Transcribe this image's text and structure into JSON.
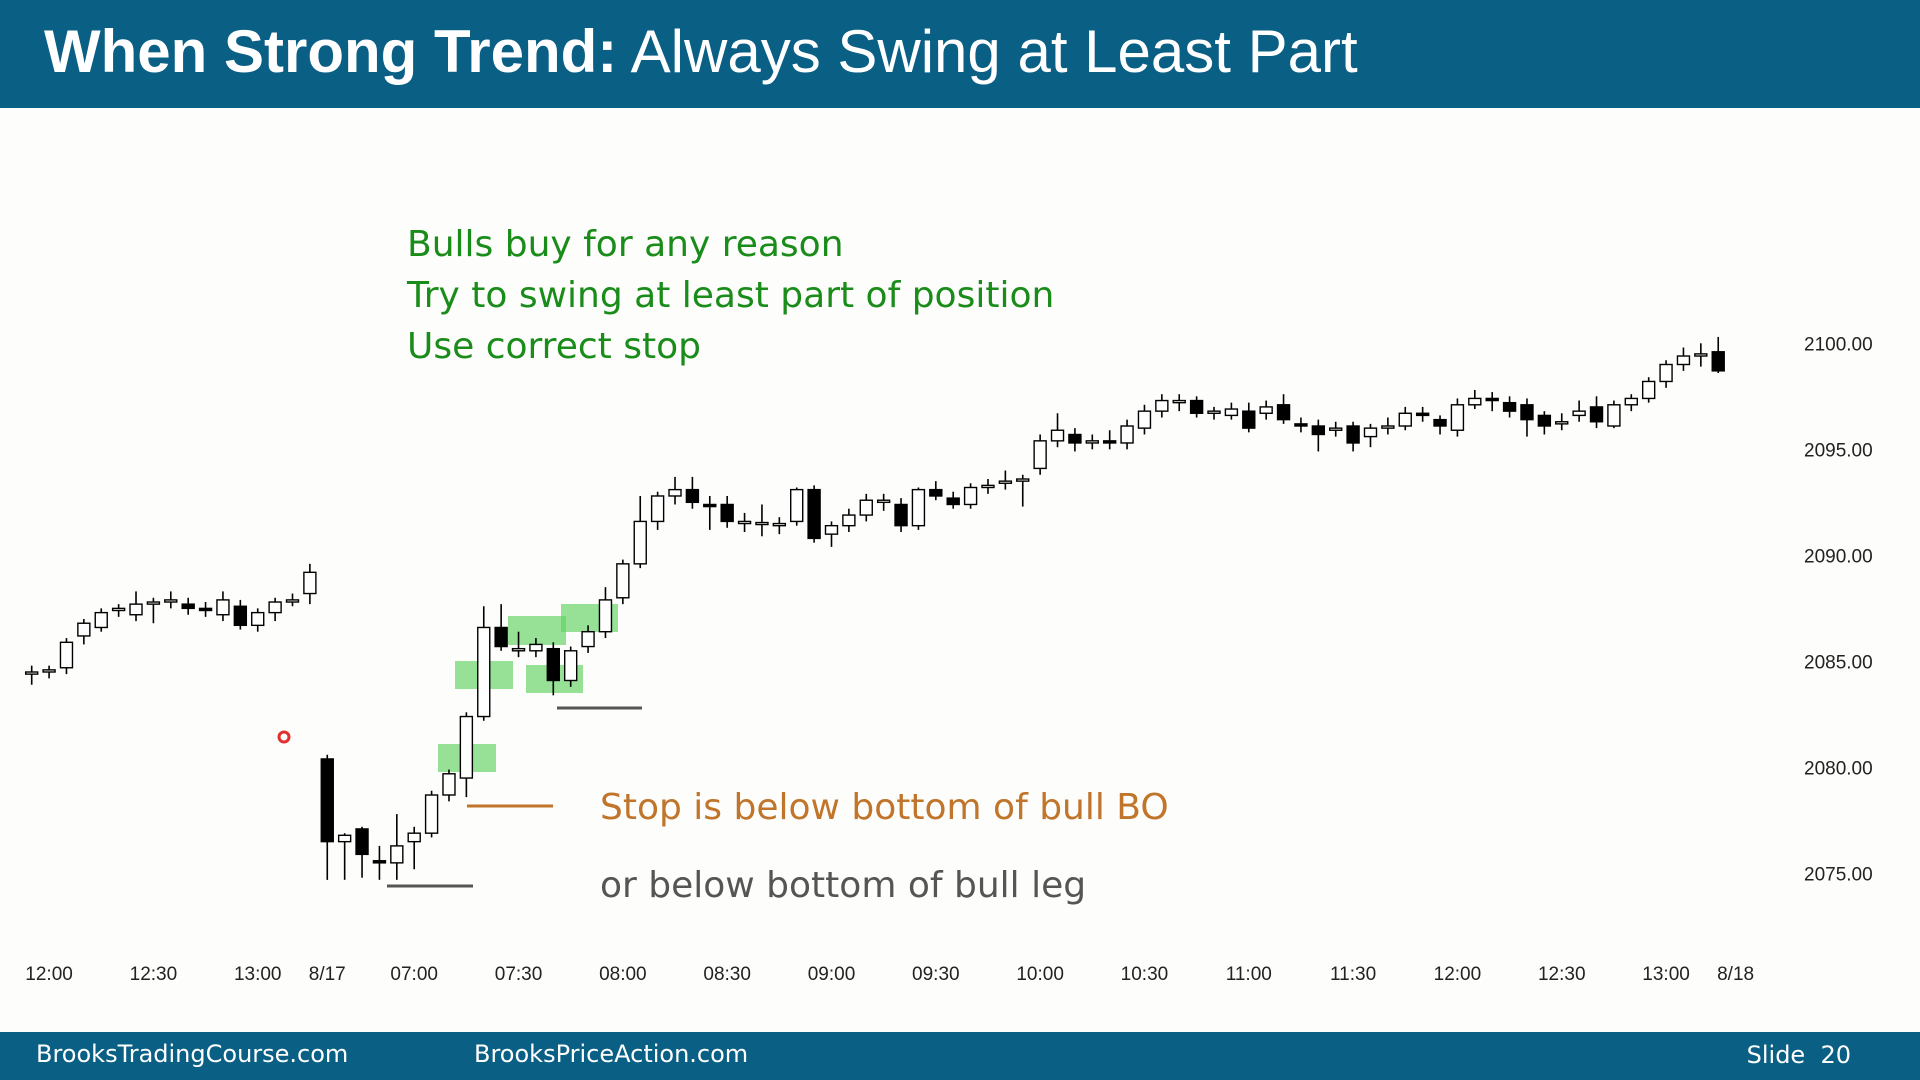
{
  "header": {
    "title_lead": "When Strong Trend:",
    "title_main": "Always Swing at Least Part"
  },
  "annotations": {
    "bull_lines": [
      "Bulls buy for any reason",
      "Try to swing at least part of position",
      "Use correct stop"
    ],
    "stop_bo": "Stop is below bottom of bull BO",
    "stop_leg": "or below bottom of bull leg"
  },
  "footer": {
    "left": "BrooksTradingCourse.com",
    "center": "BrooksPriceAction.com",
    "slide": "Slide  20"
  },
  "chart_data": {
    "type": "candlestick",
    "x": [
      -1,
      0,
      1,
      2,
      3,
      4,
      5,
      6,
      7,
      8,
      9,
      10,
      11,
      12,
      13,
      14,
      15,
      16,
      17,
      18,
      19,
      20,
      21,
      22,
      23,
      24,
      25,
      26,
      27,
      28,
      29,
      30,
      31,
      32,
      33,
      34,
      35,
      36,
      37,
      38,
      39,
      40,
      41,
      42,
      43,
      44,
      45,
      46,
      47,
      48,
      49,
      50,
      51,
      52,
      53,
      54,
      55,
      56,
      57,
      58,
      59,
      60,
      61,
      62,
      63,
      64,
      65,
      66,
      67,
      68,
      69,
      70,
      71,
      72,
      73,
      74,
      75,
      76,
      77,
      78,
      79,
      80,
      81,
      82,
      83,
      84,
      85,
      86,
      87,
      88,
      89,
      90,
      91,
      92,
      93,
      94,
      95,
      96
    ],
    "open": [
      2084.5,
      2084.6,
      2084.8,
      2086.3,
      2086.7,
      2087.5,
      2087.3,
      2087.8,
      2087.9,
      2087.8,
      2087.6,
      2087.3,
      2087.7,
      2086.8,
      2087.4,
      2087.9,
      2088.3,
      2080.5,
      2076.6,
      2077.2,
      2075.7,
      2075.6,
      2076.6,
      2077.0,
      2078.8,
      2079.6,
      2082.5,
      2086.7,
      2085.6,
      2085.6,
      2085.7,
      2084.2,
      2085.8,
      2086.5,
      2088.1,
      2089.7,
      2091.7,
      2092.9,
      2093.2,
      2092.5,
      2092.5,
      2091.6,
      2091.6,
      2091.5,
      2091.7,
      2093.2,
      2091.1,
      2091.5,
      2092.0,
      2092.6,
      2092.5,
      2091.5,
      2093.2,
      2092.8,
      2092.5,
      2093.3,
      2093.5,
      2093.6,
      2094.2,
      2095.5,
      2095.8,
      2095.4,
      2095.5,
      2095.4,
      2096.1,
      2096.9,
      2097.3,
      2097.4,
      2096.8,
      2096.7,
      2096.9,
      2096.8,
      2097.2,
      2096.3,
      2096.2,
      2096.0,
      2096.2,
      2095.7,
      2096.1,
      2096.2,
      2096.8,
      2096.5,
      2096.0,
      2097.2,
      2097.5,
      2097.3,
      2097.2,
      2096.7,
      2096.3,
      2096.7,
      2097.1,
      2096.2,
      2097.2,
      2097.5,
      2098.3,
      2099.1,
      2099.5,
      2099.7
    ],
    "high": [
      2084.9,
      2084.9,
      2086.2,
      2087.1,
      2087.6,
      2087.8,
      2088.4,
      2088.1,
      2088.4,
      2088.1,
      2087.9,
      2088.4,
      2088.0,
      2087.6,
      2088.1,
      2088.3,
      2089.7,
      2080.7,
      2077.0,
      2077.3,
      2076.4,
      2077.9,
      2077.3,
      2079.0,
      2080.0,
      2082.7,
      2087.7,
      2087.8,
      2086.5,
      2086.2,
      2086.0,
      2085.8,
      2086.8,
      2088.6,
      2089.9,
      2092.9,
      2093.1,
      2093.8,
      2093.8,
      2092.9,
      2092.9,
      2092.1,
      2092.5,
      2091.9,
      2093.3,
      2093.4,
      2091.7,
      2092.3,
      2093.0,
      2093.0,
      2092.8,
      2093.3,
      2093.6,
      2093.1,
      2093.5,
      2093.7,
      2094.1,
      2093.9,
      2095.8,
      2096.8,
      2096.1,
      2095.8,
      2096.0,
      2096.5,
      2097.2,
      2097.7,
      2097.7,
      2097.6,
      2097.1,
      2097.3,
      2097.3,
      2097.4,
      2097.7,
      2096.6,
      2096.5,
      2096.4,
      2096.4,
      2096.3,
      2096.6,
      2097.1,
      2097.1,
      2096.7,
      2097.5,
      2097.9,
      2097.8,
      2097.6,
      2097.5,
      2096.9,
      2096.8,
      2097.4,
      2097.6,
      2097.4,
      2097.7,
      2098.5,
      2099.3,
      2099.9,
      2100.1,
      2100.4
    ],
    "low": [
      2084.0,
      2084.3,
      2084.5,
      2085.9,
      2086.5,
      2087.2,
      2087.0,
      2086.9,
      2087.6,
      2087.3,
      2087.2,
      2087.0,
      2086.6,
      2086.5,
      2087.0,
      2087.7,
      2087.8,
      2074.8,
      2074.8,
      2074.9,
      2074.8,
      2074.8,
      2075.3,
      2076.8,
      2078.5,
      2078.7,
      2082.3,
      2085.6,
      2085.3,
      2085.3,
      2083.5,
      2083.9,
      2085.5,
      2086.2,
      2087.8,
      2089.5,
      2091.3,
      2092.5,
      2092.3,
      2091.3,
      2091.4,
      2091.2,
      2091.0,
      2091.1,
      2091.5,
      2090.7,
      2090.5,
      2091.2,
      2091.7,
      2092.2,
      2091.2,
      2091.3,
      2092.7,
      2092.3,
      2092.3,
      2093.0,
      2093.2,
      2092.4,
      2093.9,
      2095.2,
      2095.0,
      2095.1,
      2095.1,
      2095.1,
      2095.8,
      2096.6,
      2096.9,
      2096.6,
      2096.5,
      2096.5,
      2095.9,
      2096.5,
      2096.3,
      2095.9,
      2095.0,
      2095.7,
      2095.0,
      2095.2,
      2095.8,
      2096.0,
      2096.4,
      2095.8,
      2095.7,
      2097.0,
      2096.9,
      2096.6,
      2095.7,
      2095.8,
      2096.0,
      2096.4,
      2096.1,
      2096.1,
      2096.9,
      2097.3,
      2098.0,
      2098.8,
      2099.0,
      2098.7
    ],
    "close": [
      2084.6,
      2084.7,
      2086.0,
      2086.9,
      2087.4,
      2087.6,
      2087.8,
      2087.9,
      2088.0,
      2087.6,
      2087.5,
      2088.0,
      2086.8,
      2087.4,
      2087.9,
      2088.0,
      2089.3,
      2076.6,
      2076.9,
      2076.0,
      2075.6,
      2076.4,
      2077.0,
      2078.8,
      2079.8,
      2082.5,
      2086.7,
      2085.8,
      2085.7,
      2085.9,
      2084.2,
      2085.6,
      2086.5,
      2088.0,
      2089.7,
      2091.7,
      2092.9,
      2093.2,
      2092.6,
      2092.4,
      2091.7,
      2091.7,
      2091.6,
      2091.6,
      2093.2,
      2090.9,
      2091.5,
      2092.0,
      2092.7,
      2092.7,
      2091.5,
      2093.2,
      2092.9,
      2092.5,
      2093.3,
      2093.4,
      2093.6,
      2093.7,
      2095.5,
      2096.0,
      2095.4,
      2095.5,
      2095.4,
      2096.2,
      2096.9,
      2097.4,
      2097.4,
      2096.8,
      2096.9,
      2097.0,
      2096.1,
      2097.1,
      2096.5,
      2096.2,
      2095.8,
      2096.1,
      2095.4,
      2096.1,
      2096.2,
      2096.8,
      2096.7,
      2096.2,
      2097.2,
      2097.5,
      2097.4,
      2096.9,
      2096.5,
      2096.2,
      2096.4,
      2096.9,
      2096.4,
      2097.2,
      2097.5,
      2098.3,
      2099.1,
      2099.5,
      2099.6,
      2098.8
    ],
    "up_color": "#ffffff",
    "down_color": "#000000",
    "xlim": [
      -1.5,
      98
    ],
    "xticks": [
      {
        "value": 0,
        "label": "12:00"
      },
      {
        "value": 6,
        "label": "12:30"
      },
      {
        "value": 12,
        "label": "13:00"
      },
      {
        "value": 16,
        "label": "8/17"
      },
      {
        "value": 21,
        "label": "07:00"
      },
      {
        "value": 27,
        "label": "07:30"
      },
      {
        "value": 33,
        "label": "08:00"
      },
      {
        "value": 39,
        "label": "08:30"
      },
      {
        "value": 45,
        "label": "09:00"
      },
      {
        "value": 51,
        "label": "09:30"
      },
      {
        "value": 57,
        "label": "10:00"
      },
      {
        "value": 63,
        "label": "10:30"
      },
      {
        "value": 69,
        "label": "11:00"
      },
      {
        "value": 75,
        "label": "11:30"
      },
      {
        "value": 81,
        "label": "12:00"
      },
      {
        "value": 87,
        "label": "12:30"
      },
      {
        "value": 93,
        "label": "13:00"
      },
      {
        "value": 97,
        "label": "8/18"
      }
    ],
    "ylim": [
      2073,
      2102
    ],
    "yticks": [
      {
        "value": 2075,
        "label": "2075.00"
      },
      {
        "value": 2080,
        "label": "2080.00"
      },
      {
        "value": 2085,
        "label": "2085.00"
      },
      {
        "value": 2090,
        "label": "2090.00"
      },
      {
        "value": 2095,
        "label": "2095.00"
      },
      {
        "value": 2100,
        "label": "2100.00"
      }
    ],
    "grid": false
  }
}
